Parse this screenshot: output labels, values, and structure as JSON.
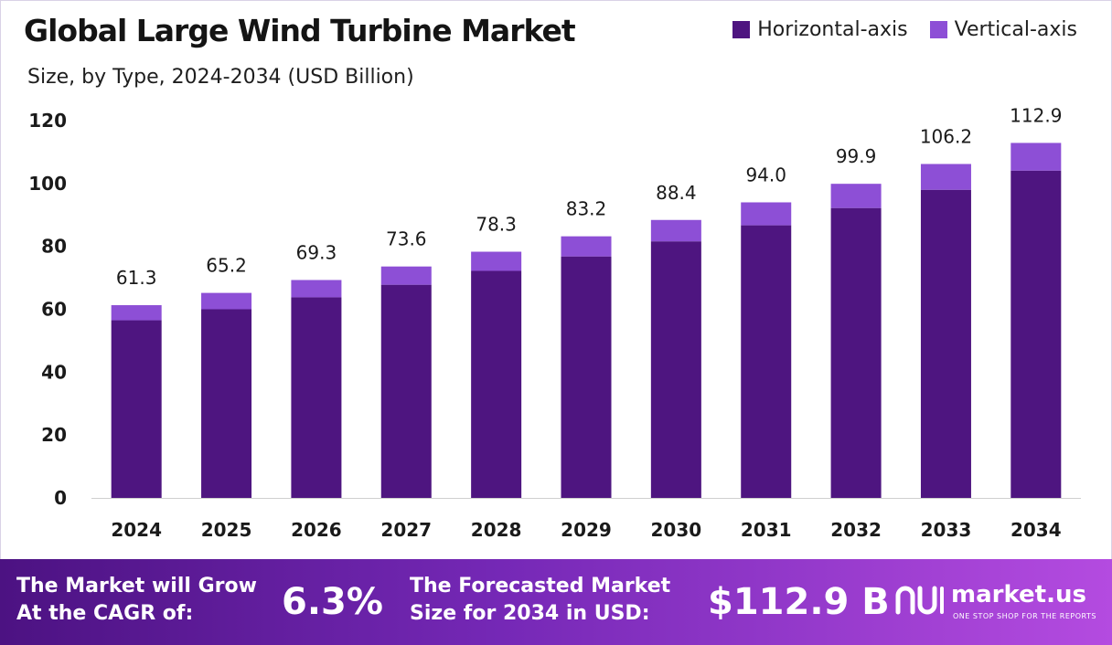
{
  "header": {
    "title": "Global Large Wind Turbine Market",
    "subtitle": "Size, by Type, 2024-2034 (USD Billion)"
  },
  "legend": {
    "items": [
      {
        "label": "Horizontal-axis",
        "color": "#4e1580"
      },
      {
        "label": "Vertical-axis",
        "color": "#8d4fd6"
      }
    ]
  },
  "chart_data": {
    "type": "bar",
    "stacked": true,
    "title": "Global Large Wind Turbine Market",
    "subtitle": "Size, by Type, 2024-2034 (USD Billion)",
    "categories": [
      "2024",
      "2025",
      "2026",
      "2027",
      "2028",
      "2029",
      "2030",
      "2031",
      "2032",
      "2033",
      "2034"
    ],
    "series": [
      {
        "name": "Horizontal-axis",
        "color": "#4e1580",
        "values": [
          56.5,
          60.0,
          63.8,
          67.8,
          72.2,
          76.8,
          81.6,
          86.7,
          92.2,
          98.0,
          104.1
        ]
      },
      {
        "name": "Vertical-axis",
        "color": "#8d4fd6",
        "values": [
          4.8,
          5.2,
          5.5,
          5.8,
          6.1,
          6.4,
          6.8,
          7.3,
          7.7,
          8.2,
          8.8
        ]
      }
    ],
    "totals": [
      "61.3",
      "65.2",
      "69.3",
      "73.6",
      "78.3",
      "83.2",
      "88.4",
      "94.0",
      "99.9",
      "106.2",
      "112.9"
    ],
    "ylim": [
      0,
      120
    ],
    "yticks": [
      0,
      20,
      40,
      60,
      80,
      100,
      120
    ],
    "grid": false,
    "legend_position": "top-right",
    "xlabel": "",
    "ylabel": ""
  },
  "footer": {
    "cagr_label": "The Market will Grow\nAt the CAGR of:",
    "cagr_value": "6.3%",
    "forecast_label": "The Forecasted Market\nSize for 2034 in USD:",
    "forecast_value": "$112.9 B",
    "brand_name": "market.us",
    "brand_tagline": "ONE STOP SHOP FOR THE REPORTS"
  }
}
